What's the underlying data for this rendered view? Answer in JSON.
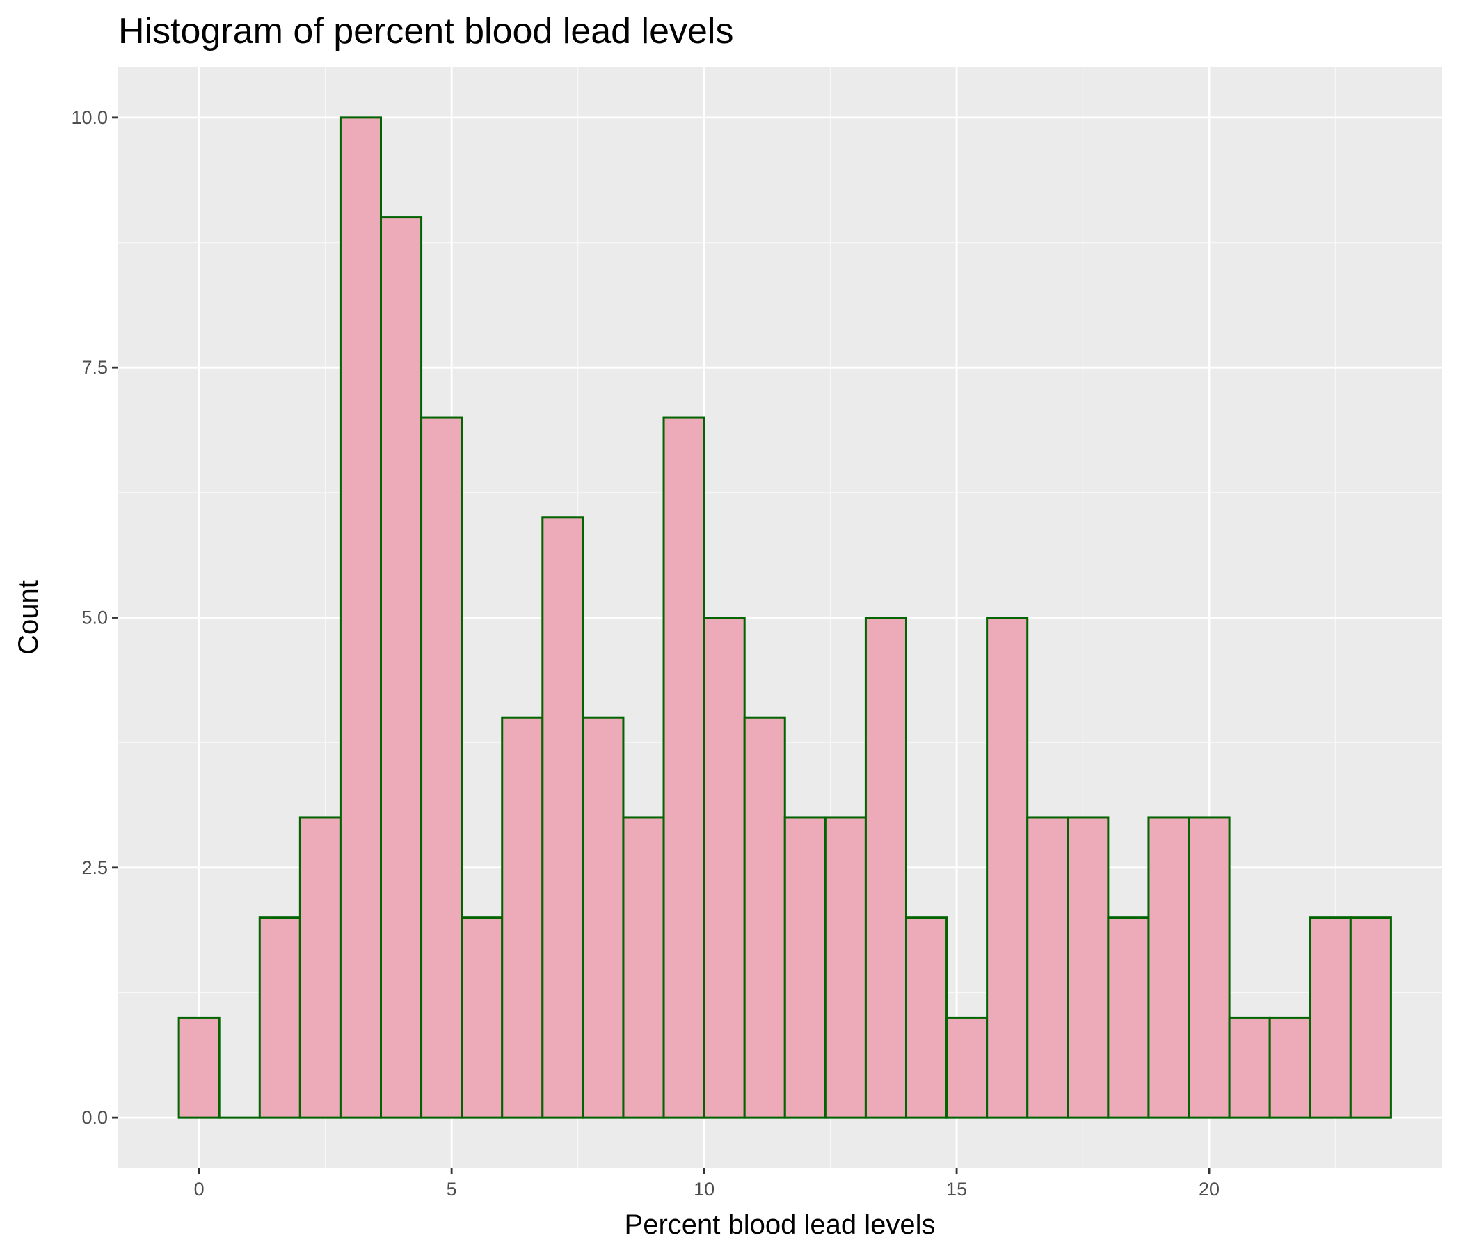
{
  "chart_data": {
    "type": "bar",
    "subtype": "histogram",
    "title": "Histogram of percent blood lead levels",
    "xlabel": "Percent blood lead levels",
    "ylabel": "Count",
    "xlim": [
      -1.6,
      24.6
    ],
    "ylim": [
      -0.5,
      10.5
    ],
    "x_ticks": [
      0,
      5,
      10,
      15,
      20
    ],
    "x_tick_labels": [
      "0",
      "5",
      "10",
      "15",
      "20"
    ],
    "y_ticks": [
      0,
      2.5,
      5,
      7.5,
      10
    ],
    "y_tick_labels": [
      "0.0",
      "2.5",
      "5.0",
      "7.5",
      "10.0"
    ],
    "grid": true,
    "bin_width": 0.8,
    "bins": [
      {
        "x0": -0.4,
        "x1": 0.4,
        "count": 1
      },
      {
        "x0": 0.4,
        "x1": 1.2,
        "count": 0
      },
      {
        "x0": 1.2,
        "x1": 2.0,
        "count": 2
      },
      {
        "x0": 2.0,
        "x1": 2.8,
        "count": 3
      },
      {
        "x0": 2.8,
        "x1": 3.6,
        "count": 10
      },
      {
        "x0": 3.6,
        "x1": 4.4,
        "count": 9
      },
      {
        "x0": 4.4,
        "x1": 5.2,
        "count": 7
      },
      {
        "x0": 5.2,
        "x1": 6.0,
        "count": 2
      },
      {
        "x0": 6.0,
        "x1": 6.8,
        "count": 4
      },
      {
        "x0": 6.8,
        "x1": 7.6,
        "count": 6
      },
      {
        "x0": 7.6,
        "x1": 8.4,
        "count": 4
      },
      {
        "x0": 8.4,
        "x1": 9.2,
        "count": 3
      },
      {
        "x0": 9.2,
        "x1": 10.0,
        "count": 7
      },
      {
        "x0": 10.0,
        "x1": 10.8,
        "count": 5
      },
      {
        "x0": 10.8,
        "x1": 11.6,
        "count": 4
      },
      {
        "x0": 11.6,
        "x1": 12.4,
        "count": 3
      },
      {
        "x0": 12.4,
        "x1": 13.2,
        "count": 3
      },
      {
        "x0": 13.2,
        "x1": 14.0,
        "count": 5
      },
      {
        "x0": 14.0,
        "x1": 14.8,
        "count": 2
      },
      {
        "x0": 14.8,
        "x1": 15.6,
        "count": 1
      },
      {
        "x0": 15.6,
        "x1": 16.4,
        "count": 5
      },
      {
        "x0": 16.4,
        "x1": 17.2,
        "count": 3
      },
      {
        "x0": 17.2,
        "x1": 18.0,
        "count": 3
      },
      {
        "x0": 18.0,
        "x1": 18.8,
        "count": 2
      },
      {
        "x0": 18.8,
        "x1": 19.6,
        "count": 3
      },
      {
        "x0": 19.6,
        "x1": 20.4,
        "count": 3
      },
      {
        "x0": 20.4,
        "x1": 21.2,
        "count": 1
      },
      {
        "x0": 21.2,
        "x1": 22.0,
        "count": 1
      },
      {
        "x0": 22.0,
        "x1": 22.8,
        "count": 2
      },
      {
        "x0": 22.8,
        "x1": 23.6,
        "count": 2
      }
    ],
    "colors": {
      "bar_fill": "#EDAAB8",
      "bar_outline": "#006400",
      "panel_background": "#EBEBEB",
      "grid_major": "#FFFFFF",
      "grid_minor": "#F7F7F7"
    }
  }
}
